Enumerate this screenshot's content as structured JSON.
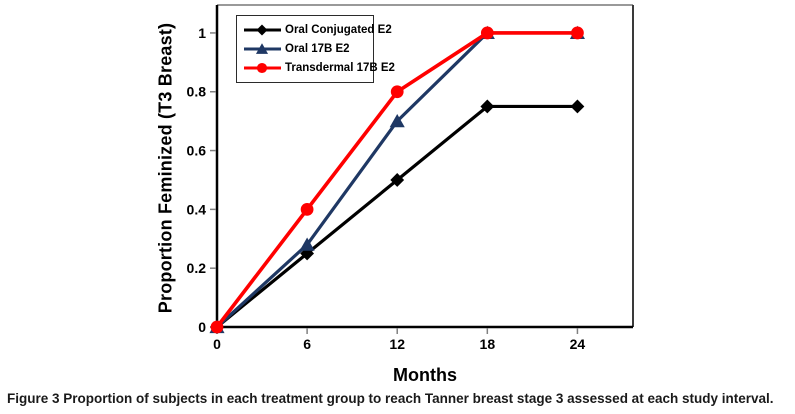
{
  "figure": {
    "caption_label": "Figure 3",
    "caption_text": "Proportion of subjects in each treatment group to reach Tanner breast stage 3 assessed at each study interval."
  },
  "chart_data": {
    "type": "line",
    "title": "",
    "xlabel": "Months",
    "ylabel": "Proportion Feminized (T3 Breast)",
    "x": [
      0,
      6,
      12,
      18,
      24
    ],
    "xtick_labels": [
      "0",
      "6",
      "12",
      "18",
      "24"
    ],
    "ytick_values": [
      0,
      0.2,
      0.4,
      0.6,
      0.8,
      1
    ],
    "ytick_labels": [
      "0",
      "0.2",
      "0.4",
      "0.6",
      "0.8",
      "1"
    ],
    "xlim": [
      0,
      27.7
    ],
    "ylim": [
      0,
      1.095
    ],
    "grid": false,
    "legend_position": "top-left-inside",
    "series": [
      {
        "name": "Oral Conjugated E2",
        "color": "#000000",
        "marker": "diamond",
        "values": [
          0,
          0.25,
          0.5,
          0.75,
          0.75
        ]
      },
      {
        "name": "Oral 17B E2",
        "color": "#1F3864",
        "marker": "triangle",
        "values": [
          0,
          0.28,
          0.7,
          1,
          1
        ]
      },
      {
        "name": "Transdermal 17B E2",
        "color": "#FF0000",
        "marker": "circle",
        "values": [
          0,
          0.4,
          0.8,
          1,
          1
        ]
      }
    ],
    "axis_color": "#000000",
    "tick_color": "#808080",
    "border_top_color": "#999999",
    "border_right_color": "#3a3a3a"
  }
}
